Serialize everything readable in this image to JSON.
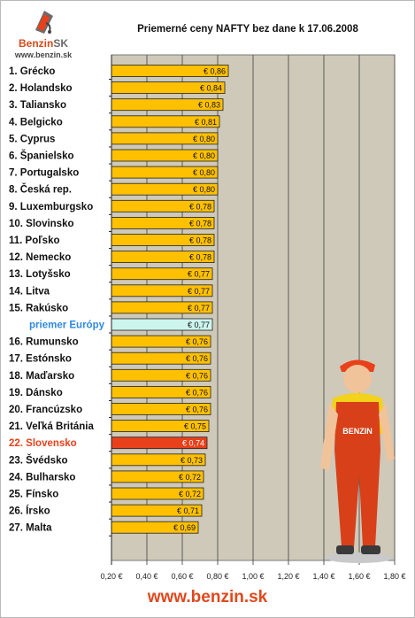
{
  "logo": {
    "brand_left": "Benzin",
    "brand_right": "SK",
    "url": "www.benzin.sk"
  },
  "footer": {
    "url": "www.benzin.sk"
  },
  "colors": {
    "bar": "#ffc000",
    "average": "#ccf5ee",
    "highlight": "#e8401b",
    "plot_bg": "#cfc9b9",
    "grid": "#5a5a5a",
    "label": "#111111",
    "average_label": "#2e8ae0",
    "highlight_label": "#e8401b"
  },
  "chart_data": {
    "type": "bar",
    "orientation": "horizontal",
    "title": "Priemerné ceny NAFTY bez dane k 17.06.2008",
    "xlabel": "",
    "ylabel": "",
    "xlim": [
      0.2,
      1.8
    ],
    "x_ticks": [
      0.2,
      0.4,
      0.6,
      0.8,
      1.0,
      1.2,
      1.4,
      1.6,
      1.8
    ],
    "x_tick_labels": [
      "0,20 €",
      "0,40 €",
      "0,60 €",
      "0,80 €",
      "1,00 €",
      "1,20 €",
      "1,40 €",
      "1,60 €",
      "1,80 €"
    ],
    "grid": true,
    "categories": [
      "1. Grécko",
      "2. Holandsko",
      "3. Taliansko",
      "4. Belgicko",
      "5. Cyprus",
      "6. Španielsko",
      "7. Portugalsko",
      "8. Česká rep.",
      "9. Luxemburgsko",
      "10. Slovinsko",
      "11. Poľsko",
      "12. Nemecko",
      "13. Lotyšsko",
      "14. Litva",
      "15. Rakúsko",
      "priemer Európy",
      "16. Rumunsko",
      "17. Estónsko",
      "18. Maďarsko",
      "19. Dánsko",
      "20. Francúzsko",
      "21. Veľká Británia",
      "22. Slovensko",
      "23. Švédsko",
      "24. Bulharsko",
      "25. Fínsko",
      "26. Írsko",
      "27. Malta"
    ],
    "values": [
      0.86,
      0.84,
      0.83,
      0.81,
      0.8,
      0.8,
      0.8,
      0.8,
      0.78,
      0.78,
      0.78,
      0.78,
      0.77,
      0.77,
      0.77,
      0.77,
      0.76,
      0.76,
      0.76,
      0.76,
      0.76,
      0.75,
      0.74,
      0.73,
      0.72,
      0.72,
      0.71,
      0.69
    ],
    "value_labels": [
      "€ 0,86",
      "€ 0,84",
      "€ 0,83",
      "€ 0,81",
      "€ 0,80",
      "€ 0,80",
      "€ 0,80",
      "€ 0,80",
      "€ 0,78",
      "€ 0,78",
      "€ 0,78",
      "€ 0,78",
      "€ 0,77",
      "€ 0,77",
      "€ 0,77",
      "€ 0,77",
      "€ 0,76",
      "€ 0,76",
      "€ 0,76",
      "€ 0,76",
      "€ 0,76",
      "€ 0,75",
      "€ 0,74",
      "€ 0,73",
      "€ 0,72",
      "€ 0,72",
      "€ 0,71",
      "€ 0,69"
    ],
    "average_category": "priemer Európy",
    "highlight_category": "22. Slovensko"
  }
}
